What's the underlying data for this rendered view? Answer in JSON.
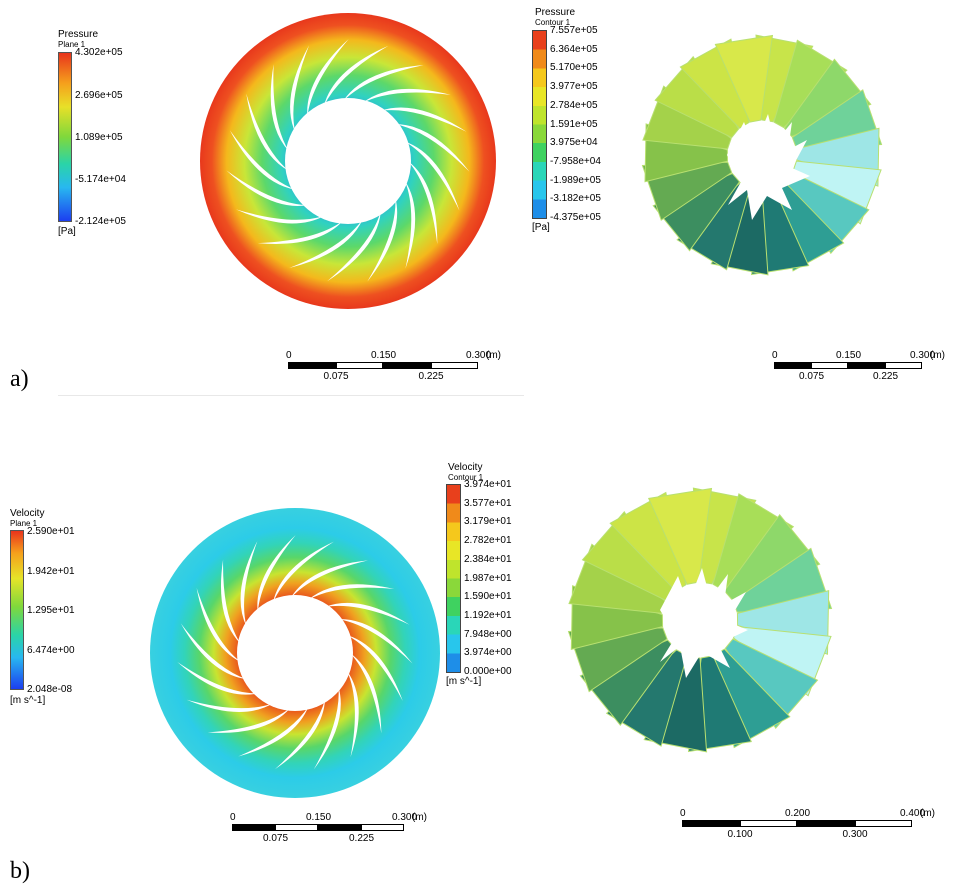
{
  "panel_a": {
    "label": "a)",
    "plane_legend": {
      "title": "Pressure",
      "subtitle": "Plane 1",
      "ticks": [
        "4.302e+05",
        "2.696e+05",
        "1.089e+05",
        "-5.174e+04",
        "-2.124e+05"
      ],
      "unit": "[Pa]"
    },
    "contour_legend": {
      "title": "Pressure",
      "subtitle": "Contour 1",
      "ticks": [
        "7.557e+05",
        "6.364e+05",
        "5.170e+05",
        "3.977e+05",
        "2.784e+05",
        "1.591e+05",
        "3.975e+04",
        "-7.958e+04",
        "-1.989e+05",
        "-3.182e+05",
        "-4.375e+05"
      ],
      "unit": "[Pa]",
      "colors": [
        "#e8401c",
        "#f08a1a",
        "#f5c81c",
        "#e8e626",
        "#bfe42c",
        "#8ad83a",
        "#3fd260",
        "#2ad6b8",
        "#28c6ec",
        "#1e8ee8",
        "#1c3ef0"
      ]
    },
    "scale_left": {
      "top": [
        "0",
        "0.150",
        "0.300"
      ],
      "unit": "(m)",
      "bottom": [
        "0.075",
        "0.225"
      ]
    },
    "scale_right": {
      "top": [
        "0",
        "0.150",
        "0.300"
      ],
      "unit": "(m)",
      "bottom": [
        "0.075",
        "0.225"
      ]
    }
  },
  "panel_b": {
    "label": "b)",
    "plane_legend": {
      "title": "Velocity",
      "subtitle": "Plane 1",
      "ticks": [
        "2.590e+01",
        "1.942e+01",
        "1.295e+01",
        "6.474e+00",
        "2.048e-08"
      ],
      "unit": "[m s^-1]"
    },
    "contour_legend": {
      "title": "Velocity",
      "subtitle": "Contour 1",
      "ticks": [
        "3.974e+01",
        "3.577e+01",
        "3.179e+01",
        "2.782e+01",
        "2.384e+01",
        "1.987e+01",
        "1.590e+01",
        "1.192e+01",
        "7.948e+00",
        "3.974e+00",
        "0.000e+00"
      ],
      "unit": "[m s^-1]",
      "colors": [
        "#e8401c",
        "#f08a1a",
        "#f5c81c",
        "#e8e626",
        "#bfe42c",
        "#8ad83a",
        "#3fd260",
        "#2ad6b8",
        "#28c6ec",
        "#1e8ee8",
        "#1c3ef0"
      ]
    },
    "scale_left": {
      "top": [
        "0",
        "0.150",
        "0.300"
      ],
      "unit": "(m)",
      "bottom": [
        "0.075",
        "0.225"
      ]
    },
    "scale_right": {
      "top": [
        "0",
        "0.200",
        "0.400"
      ],
      "unit": "(m)",
      "bottom": [
        "0.100",
        "0.300"
      ]
    }
  }
}
